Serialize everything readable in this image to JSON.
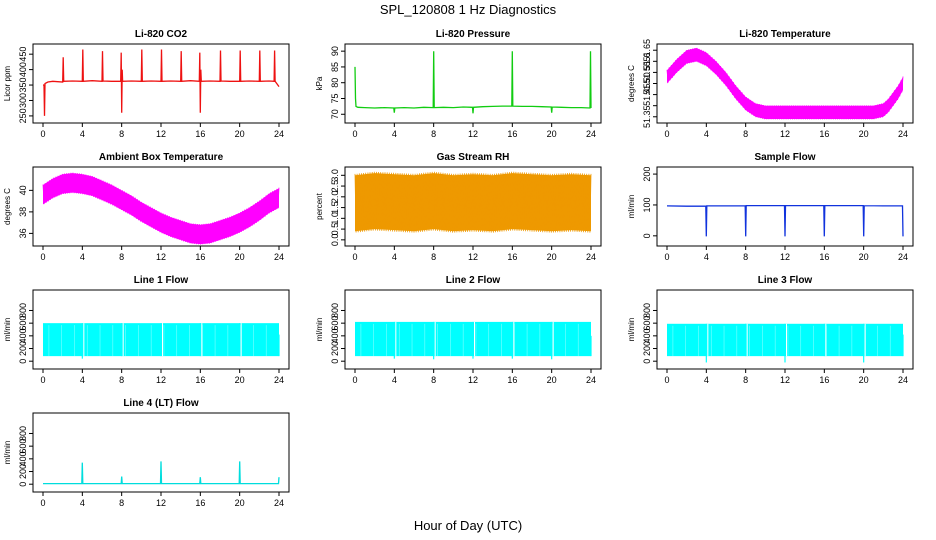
{
  "figure": {
    "title": "SPL_120808  1 Hz Diagnostics",
    "xlabel": "Hour of Day (UTC)"
  },
  "chart_data": [
    {
      "id": "co2",
      "type": "line",
      "title": "Li-820 CO2",
      "ylabel": "Licor ppm",
      "color": "#ee1111",
      "fill": false,
      "xlim": [
        0,
        24
      ],
      "ylim": [
        240,
        470
      ],
      "yticks": [
        250,
        300,
        350,
        400,
        450
      ],
      "ytick_labels": [
        "250",
        "300",
        "350",
        "400",
        "450"
      ],
      "x": [
        0,
        0.1,
        0.15,
        0.2,
        0.5,
        1,
        2,
        2.05,
        2.1,
        3,
        4,
        4.05,
        4.1,
        5,
        6,
        6.05,
        6.1,
        7,
        7.9,
        7.95,
        8,
        8.05,
        8.1,
        9,
        10,
        10.05,
        10.1,
        11,
        12,
        12.05,
        12.1,
        13,
        14,
        14.05,
        14.1,
        15,
        15.9,
        15.95,
        16,
        16.05,
        16.1,
        17,
        18,
        18.05,
        18.1,
        19,
        20,
        20.05,
        20.1,
        21,
        22,
        22.05,
        22.1,
        23,
        23.5,
        23.55,
        23.6,
        24
      ],
      "values": [
        350,
        350,
        250,
        355,
        360,
        362,
        360,
        440,
        362,
        363,
        362,
        465,
        362,
        364,
        362,
        460,
        363,
        362,
        362,
        455,
        260,
        400,
        362,
        363,
        362,
        465,
        362,
        363,
        362,
        465,
        362,
        363,
        362,
        460,
        362,
        364,
        362,
        455,
        260,
        400,
        362,
        363,
        362,
        462,
        363,
        362,
        362,
        462,
        362,
        363,
        362,
        462,
        362,
        363,
        362,
        462,
        362,
        345
      ]
    },
    {
      "id": "pressure",
      "type": "line",
      "title": "Li-820 Pressure",
      "ylabel": "kPa",
      "color": "#11cc11",
      "fill": false,
      "xlim": [
        0,
        24
      ],
      "ylim": [
        68.5,
        91
      ],
      "yticks": [
        70,
        75,
        80,
        85,
        90
      ],
      "ytick_labels": [
        "70",
        "75",
        "80",
        "85",
        "90"
      ],
      "x": [
        0,
        0.05,
        0.1,
        0.3,
        1,
        2,
        3,
        3.95,
        4,
        4.05,
        5,
        6,
        7,
        7.95,
        8,
        8.05,
        9,
        10,
        11,
        11.95,
        12,
        12.05,
        13,
        14,
        15,
        15.95,
        16,
        16.05,
        17,
        18,
        19,
        19.95,
        20,
        20.05,
        21,
        22,
        23,
        23.9,
        23.95,
        24
      ],
      "values": [
        85,
        75,
        72.5,
        72.2,
        72.1,
        72.0,
        72.1,
        72.0,
        70.5,
        72.0,
        72.1,
        72.0,
        72.2,
        72.1,
        90,
        72.1,
        72.2,
        72.1,
        72.3,
        72.2,
        70.3,
        72.2,
        72.4,
        72.5,
        72.6,
        72.6,
        90,
        72.6,
        72.5,
        72.5,
        72.4,
        72.3,
        70.5,
        72.3,
        72.2,
        72.1,
        72.1,
        72.0,
        90,
        72
      ]
    },
    {
      "id": "licor-temp",
      "type": "area",
      "title": "Li-820 Temperature",
      "ylabel": "degrees C",
      "color": "#ff00ff",
      "fill": true,
      "xlim": [
        0,
        24
      ],
      "ylim": [
        51.34,
        51.66
      ],
      "yticks": [
        51.35,
        51.4,
        51.45,
        51.5,
        51.55,
        51.6,
        51.65
      ],
      "ytick_labels": [
        "51.35",
        "",
        "51.45",
        "51.50",
        "51.55",
        "51.6",
        "51.65"
      ],
      "x": [
        0,
        1,
        2,
        3,
        4,
        5,
        6,
        7,
        8,
        9,
        10,
        11,
        12,
        13,
        14,
        15,
        16,
        17,
        18,
        19,
        20,
        21,
        22,
        22.5,
        23,
        23.5,
        24
      ],
      "values": [
        51.53,
        51.58,
        51.62,
        51.63,
        51.61,
        51.57,
        51.52,
        51.46,
        51.41,
        51.38,
        51.37,
        51.37,
        51.37,
        51.37,
        51.37,
        51.37,
        51.37,
        51.37,
        51.37,
        51.37,
        51.37,
        51.37,
        51.38,
        51.4,
        51.43,
        51.46,
        51.5
      ],
      "band": 0.03
    },
    {
      "id": "ambient-temp",
      "type": "area",
      "title": "Ambient Box Temperature",
      "ylabel": "degrees C",
      "color": "#ff00ff",
      "fill": true,
      "xlim": [
        0,
        24
      ],
      "ylim": [
        35.2,
        41.8
      ],
      "yticks": [
        36,
        38,
        40
      ],
      "ytick_labels": [
        "36",
        "38",
        "40"
      ],
      "x": [
        0,
        1,
        2,
        3,
        4,
        5,
        6,
        7,
        8,
        9,
        10,
        11,
        12,
        13,
        14,
        15,
        16,
        17,
        18,
        19,
        20,
        21,
        22,
        23,
        24
      ],
      "values": [
        39.6,
        40.2,
        40.6,
        40.7,
        40.6,
        40.4,
        40.0,
        39.6,
        39.1,
        38.6,
        38.0,
        37.5,
        37.0,
        36.6,
        36.3,
        36.0,
        35.9,
        36.0,
        36.3,
        36.6,
        37.0,
        37.5,
        38.1,
        38.8,
        39.3
      ],
      "band": 0.9
    },
    {
      "id": "gas-rh",
      "type": "area",
      "title": "Gas Stream RH",
      "ylabel": "percent",
      "color": "#ee9900",
      "fill": true,
      "xlim": [
        0,
        24
      ],
      "ylim": [
        -0.1,
        3.2
      ],
      "yticks": [
        0,
        0.5,
        1,
        1.5,
        2,
        2.5,
        3
      ],
      "ytick_labels": [
        "0.0",
        "0.5",
        "1.0",
        "1.5",
        "2.0",
        "2.5",
        "3.0"
      ],
      "x": [
        0,
        2,
        4,
        6,
        8,
        10,
        12,
        14,
        16,
        18,
        20,
        22,
        24
      ],
      "values": [
        1.7,
        1.8,
        1.75,
        1.7,
        1.8,
        1.7,
        1.75,
        1.7,
        1.8,
        1.75,
        1.7,
        1.75,
        1.7
      ],
      "band": 1.3
    },
    {
      "id": "sample-flow",
      "type": "line",
      "title": "Sample Flow",
      "ylabel": "ml/min",
      "color": "#1133dd",
      "fill": false,
      "xlim": [
        0,
        24
      ],
      "ylim": [
        -20,
        210
      ],
      "yticks": [
        0,
        100,
        200
      ],
      "ytick_labels": [
        "0",
        "100",
        "200"
      ],
      "x": [
        0,
        2,
        3.95,
        4,
        4.05,
        6,
        7.95,
        8,
        8.05,
        10,
        11.95,
        12,
        12.05,
        14,
        15.95,
        16,
        16.05,
        18,
        19.95,
        20,
        20.05,
        22,
        23.95,
        24
      ],
      "values": [
        97,
        96,
        96,
        -2,
        97,
        97,
        97,
        -2,
        98,
        98,
        98,
        -2,
        98,
        98,
        98,
        -2,
        98,
        98,
        98,
        -2,
        98,
        97,
        97,
        -2
      ]
    },
    {
      "id": "line1-flow",
      "type": "area",
      "title": "Line 1 Flow",
      "ylabel": "ml/min",
      "color": "#00ffff",
      "fill": true,
      "xlim": [
        0,
        24
      ],
      "ylim": [
        -60,
        1060
      ],
      "yticks": [
        0,
        200,
        400,
        600,
        800
      ],
      "ytick_labels": [
        "0",
        "200",
        "400",
        "600",
        "800"
      ],
      "low": 80,
      "high": 600,
      "notches": [
        [
          4,
          40,
          600
        ],
        [
          8,
          80,
          600
        ],
        [
          12,
          80,
          600
        ],
        [
          16,
          80,
          600
        ],
        [
          20,
          80,
          600
        ],
        [
          24,
          80,
          420
        ]
      ]
    },
    {
      "id": "line2-flow",
      "type": "area",
      "title": "Line 2 Flow",
      "ylabel": "ml/min",
      "color": "#00ffff",
      "fill": true,
      "xlim": [
        0,
        24
      ],
      "ylim": [
        -60,
        1060
      ],
      "yticks": [
        0,
        200,
        400,
        600,
        800
      ],
      "ytick_labels": [
        "0",
        "200",
        "400",
        "600",
        "800"
      ],
      "low": 80,
      "high": 620,
      "notches": [
        [
          4,
          40,
          620
        ],
        [
          8,
          30,
          620
        ],
        [
          12,
          40,
          620
        ],
        [
          16,
          40,
          620
        ],
        [
          20,
          30,
          620
        ],
        [
          24,
          80,
          400
        ]
      ]
    },
    {
      "id": "line3-flow",
      "type": "area",
      "title": "Line 3 Flow",
      "ylabel": "ml/min",
      "color": "#00ffff",
      "fill": true,
      "xlim": [
        0,
        24
      ],
      "ylim": [
        -60,
        1060
      ],
      "yticks": [
        0,
        200,
        400,
        600,
        800
      ],
      "ytick_labels": [
        "0",
        "200",
        "400",
        "600",
        "800"
      ],
      "low": 80,
      "high": 590,
      "notches": [
        [
          4,
          -20,
          590
        ],
        [
          8,
          80,
          590
        ],
        [
          12,
          -20,
          590
        ],
        [
          16,
          80,
          590
        ],
        [
          20,
          -20,
          590
        ],
        [
          24,
          80,
          420
        ]
      ]
    },
    {
      "id": "line4-flow",
      "type": "line",
      "title": "Line 4 (LT) Flow",
      "ylabel": "ml/min",
      "color": "#00dddd",
      "fill": false,
      "xlim": [
        0,
        24
      ],
      "ylim": [
        -60,
        1060
      ],
      "yticks": [
        0,
        200,
        400,
        600,
        800
      ],
      "ytick_labels": [
        "0",
        "200",
        "400",
        "600",
        "800"
      ],
      "x": [
        0,
        3.95,
        4,
        4.05,
        7.95,
        8,
        8.05,
        11.95,
        12,
        12.05,
        15.95,
        16,
        16.05,
        19.95,
        20,
        20.05,
        23.95,
        24
      ],
      "values": [
        10,
        10,
        340,
        10,
        10,
        120,
        10,
        10,
        360,
        10,
        10,
        110,
        10,
        10,
        360,
        10,
        10,
        110
      ]
    }
  ],
  "xaxis": {
    "ticks": [
      0,
      4,
      8,
      12,
      16,
      20,
      24
    ],
    "tick_labels": [
      "0",
      "4",
      "8",
      "12",
      "16",
      "20",
      "24"
    ]
  }
}
